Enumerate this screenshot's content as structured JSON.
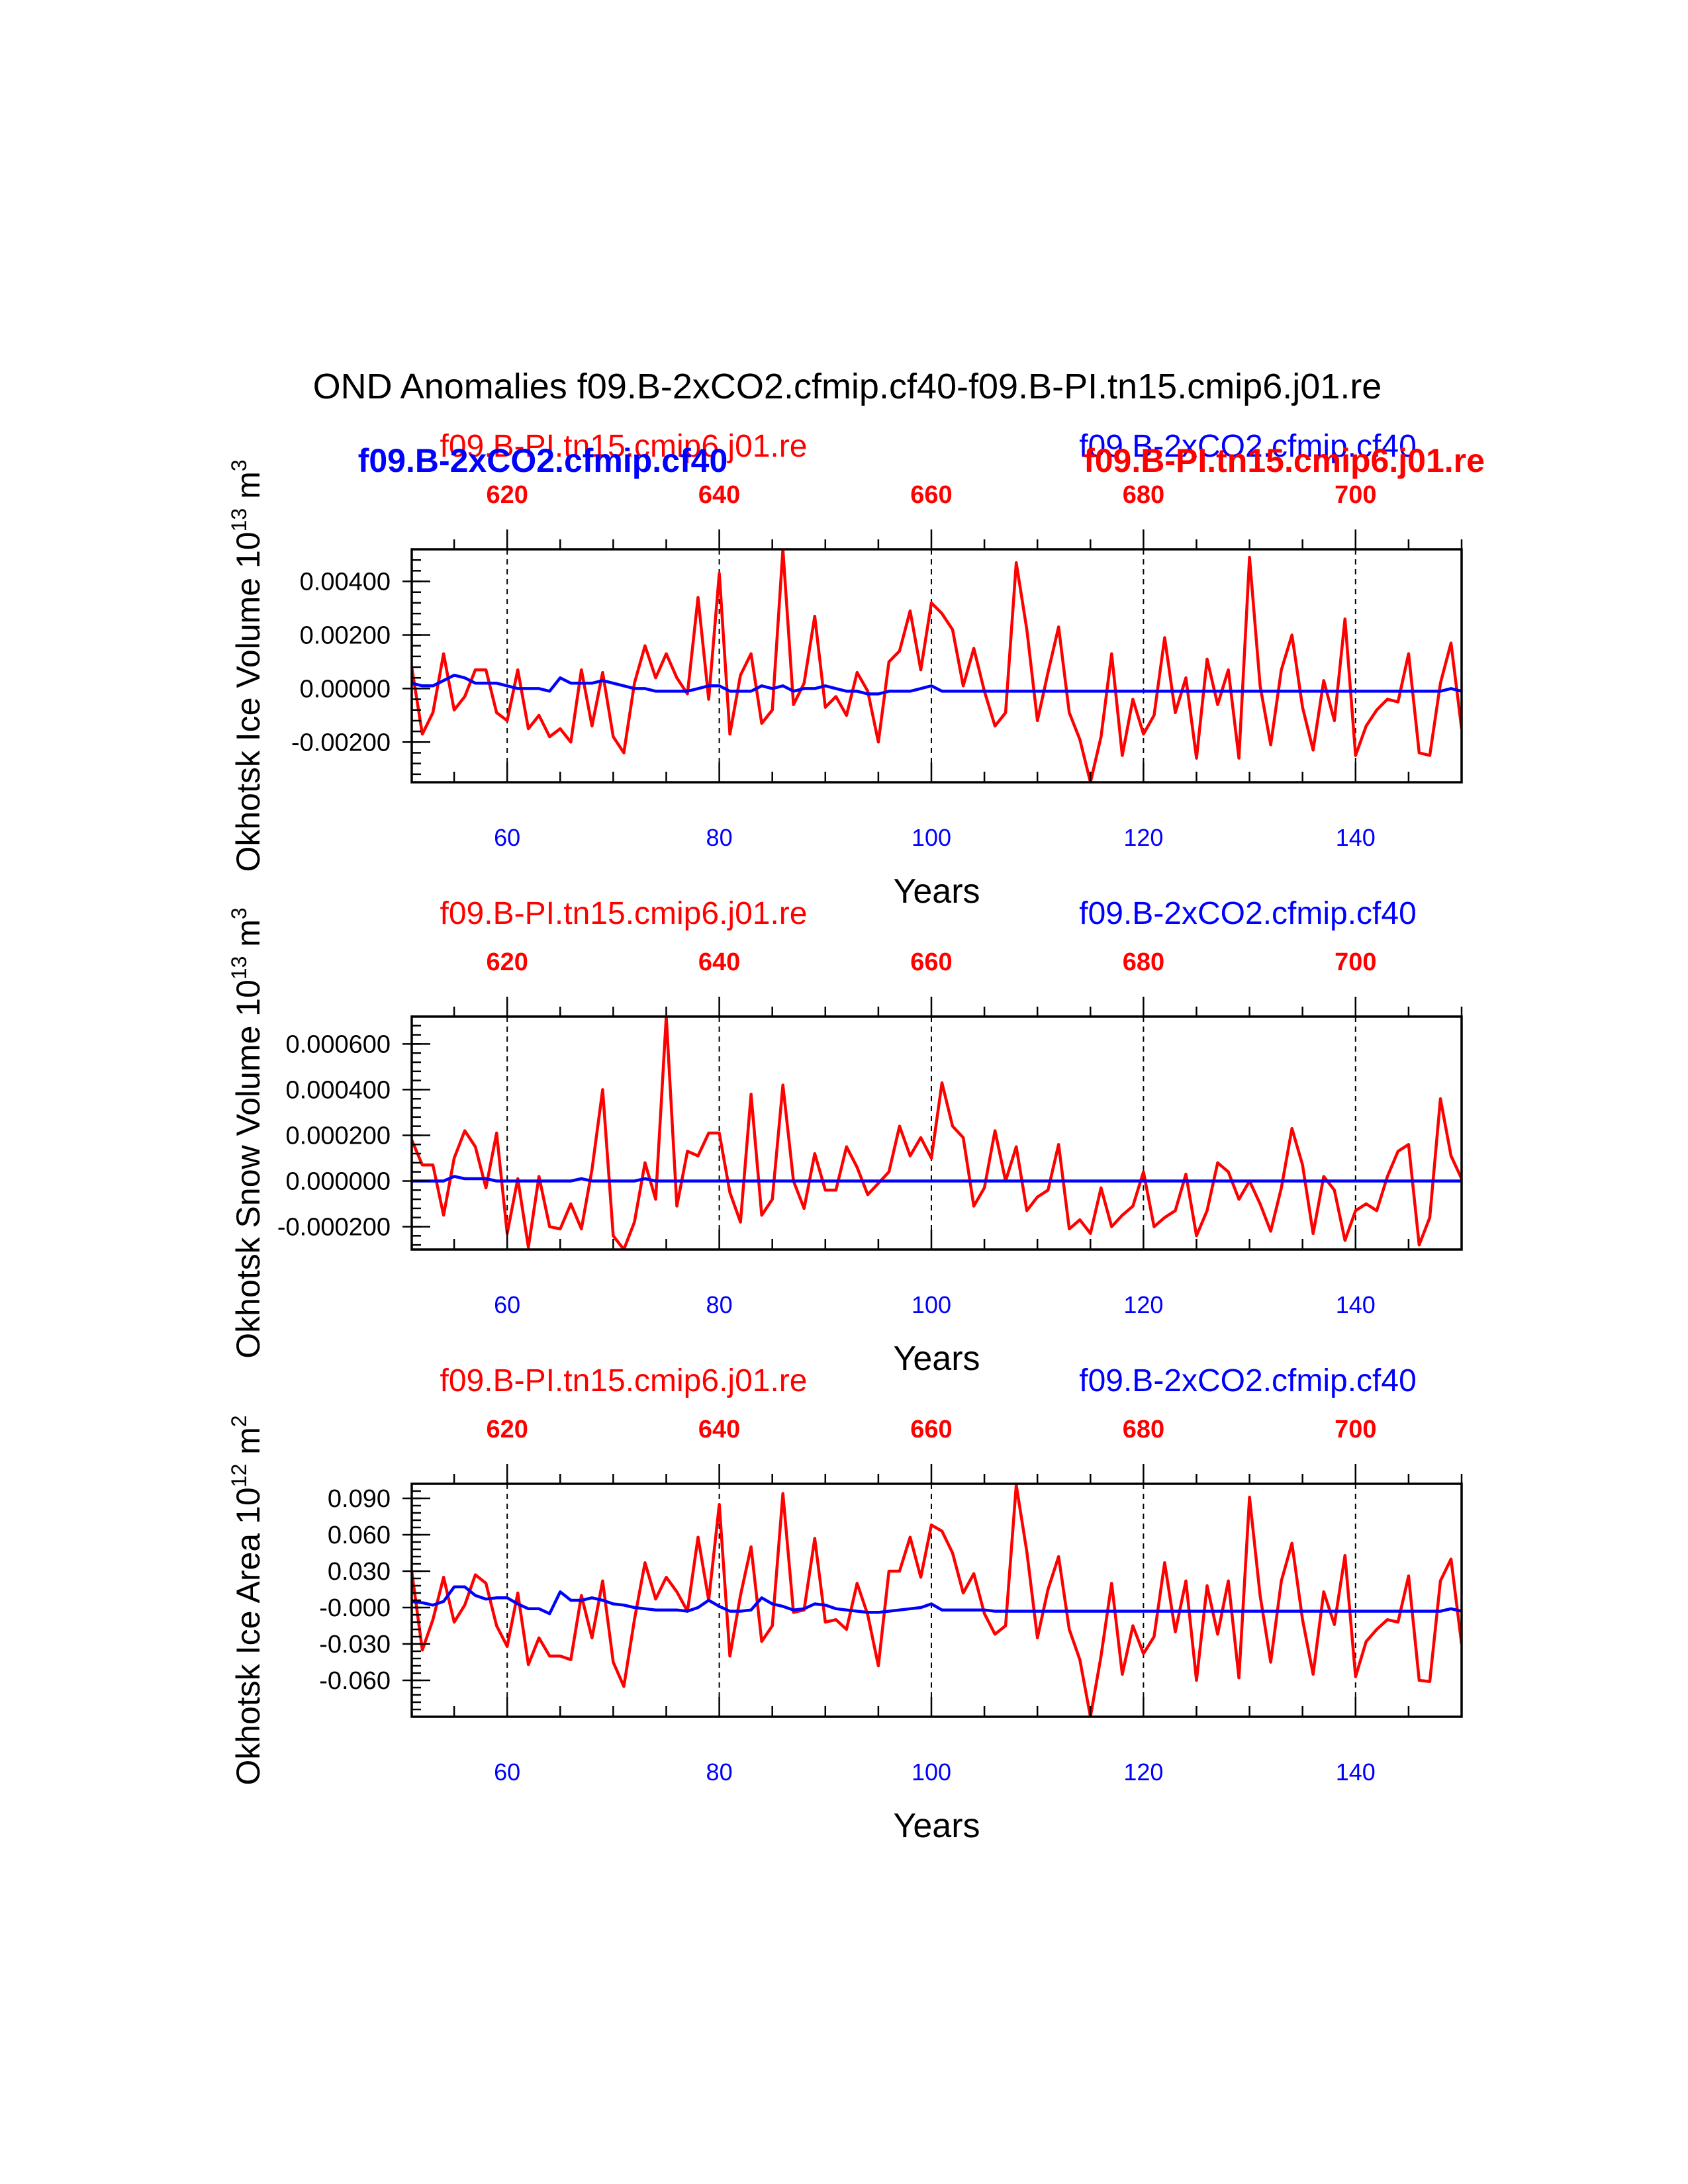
{
  "title": "OND Anomalies f09.B-2xCO2.cfmip.cf40-f09.B-PI.tn15.cmip6.j01.re",
  "colors": {
    "pi": "#ff0000",
    "co2": "#0000ff",
    "axis": "#000000"
  },
  "chart_data": [
    {
      "type": "line",
      "ylabel_main": "Okhotsk Ice Volume 10",
      "ylabel_exp": "13",
      "ylabel_unit": " m",
      "ylabel_unit_exp": "3",
      "xlabel": "Years",
      "bottom_ticks": [
        "60",
        "80",
        "100",
        "120",
        "140"
      ],
      "top_ticks": [
        "620",
        "640",
        "660",
        "680",
        "700"
      ],
      "ytick_labels": [
        "0.00400",
        "0.00200",
        "0.00000",
        "-0.00200"
      ],
      "yticks": [
        0.004,
        0.002,
        0.0,
        -0.002
      ],
      "ylim": [
        -0.0035,
        0.0052
      ],
      "xlim": [
        51,
        150
      ],
      "top_xlim": [
        611,
        710
      ],
      "left_label": "f09.B-PI.tn15.cmip6.j01.re",
      "right_label": "f09.B-2xCO2.cfmip.cf40",
      "left_bold": "f09.B-2xCO2.cfmip.cf40",
      "right_bold": "f09.B-PI.tn15.cmip6.j01.re",
      "series": [
        {
          "name": "f09.B-PI.tn15.cmip6.j01.re",
          "color": "red",
          "values": [
            0.0008,
            -0.0017,
            -0.0009,
            0.0013,
            -0.0008,
            -0.0003,
            0.0007,
            0.0007,
            -0.0009,
            -0.0012,
            0.0007,
            -0.0015,
            -0.001,
            -0.0018,
            -0.0015,
            -0.002,
            0.0007,
            -0.0014,
            0.0006,
            -0.0018,
            -0.0024,
            0.0002,
            0.0016,
            0.0004,
            0.0013,
            0.0004,
            -0.0002,
            0.0034,
            -0.0004,
            0.0043,
            -0.0017,
            0.0005,
            0.0013,
            -0.0013,
            -0.0008,
            0.0052,
            -0.0006,
            0.0002,
            0.0027,
            -0.0007,
            -0.0003,
            -0.001,
            0.0006,
            -0.0001,
            -0.002,
            0.001,
            0.0014,
            0.0029,
            0.0007,
            0.0032,
            0.0028,
            0.0022,
            0.0001,
            0.0015,
            -0.0001,
            -0.0014,
            -0.0009,
            0.0047,
            0.0022,
            -0.0012,
            0.0006,
            0.0023,
            -0.0009,
            -0.0019,
            -0.0035,
            -0.0018,
            0.0013,
            -0.0025,
            -0.0004,
            -0.0017,
            -0.001,
            0.0019,
            -0.0009,
            0.0004,
            -0.0026,
            0.0011,
            -0.0006,
            0.0007,
            -0.0026,
            0.0049,
            0.0001,
            -0.0021,
            0.0007,
            0.002,
            -0.0007,
            -0.0023,
            0.0003,
            -0.0012,
            0.0026,
            -0.0025,
            -0.0014,
            -0.0008,
            -0.0004,
            -0.0005,
            0.0013,
            -0.0024,
            -0.0025,
            0.0002,
            0.0017,
            -0.0015
          ]
        },
        {
          "name": "f09.B-2xCO2.cfmip.cf40",
          "color": "blue",
          "values": [
            0.0002,
            0.0001,
            0.0001,
            0.0003,
            0.0005,
            0.0004,
            0.0002,
            0.0002,
            0.0002,
            0.0001,
            0.0,
            0.0,
            0.0,
            -0.0001,
            0.0004,
            0.0002,
            0.0002,
            0.0002,
            0.0003,
            0.0002,
            0.0001,
            0.0,
            0.0,
            -0.0001,
            -0.0001,
            -0.0001,
            -0.0001,
            0.0,
            0.0001,
            0.0001,
            -0.0001,
            -0.0001,
            -0.0001,
            0.0001,
            0.0,
            0.0001,
            -0.0001,
            0.0,
            0.0,
            0.0001,
            0.0,
            -0.0001,
            -0.0001,
            -0.0002,
            -0.0002,
            -0.0001,
            -0.0001,
            -0.0001,
            0.0,
            0.0001,
            -0.0001,
            -0.0001,
            -0.0001,
            -0.0001,
            -0.0001,
            -0.0001,
            -0.0001,
            -0.0001,
            -0.0001,
            -0.0001,
            -0.0001,
            -0.0001,
            -0.0001,
            -0.0001,
            -0.0001,
            -0.0001,
            -0.0001,
            -0.0001,
            -0.0001,
            -0.0001,
            -0.0001,
            -0.0001,
            -0.0001,
            -0.0001,
            -0.0001,
            -0.0001,
            -0.0001,
            -0.0001,
            -0.0001,
            -0.0001,
            -0.0001,
            -0.0001,
            -0.0001,
            -0.0001,
            -0.0001,
            -0.0001,
            -0.0001,
            -0.0001,
            -0.0001,
            -0.0001,
            -0.0001,
            -0.0001,
            -0.0001,
            -0.0001,
            -0.0001,
            -0.0001,
            -0.0001,
            -0.0001,
            0.0,
            -0.0001
          ]
        }
      ]
    },
    {
      "type": "line",
      "ylabel_main": "Okhotsk Snow Volume 10",
      "ylabel_exp": "13",
      "ylabel_unit": " m",
      "ylabel_unit_exp": "3",
      "xlabel": "Years",
      "bottom_ticks": [
        "60",
        "80",
        "100",
        "120",
        "140"
      ],
      "top_ticks": [
        "620",
        "640",
        "660",
        "680",
        "700"
      ],
      "ytick_labels": [
        "0.000600",
        "0.000400",
        "0.000200",
        "0.000000",
        "-0.000200"
      ],
      "yticks": [
        0.0006,
        0.0004,
        0.0002,
        0.0,
        -0.0002
      ],
      "ylim": [
        -0.0003,
        0.00072
      ],
      "xlim": [
        51,
        150
      ],
      "top_xlim": [
        611,
        710
      ],
      "left_label": "f09.B-PI.tn15.cmip6.j01.re",
      "right_label": "f09.B-2xCO2.cfmip.cf40",
      "series": [
        {
          "name": "f09.B-PI.tn15.cmip6.j01.re",
          "color": "red",
          "values": [
            0.00018,
            7e-05,
            7e-05,
            -0.00015,
            0.0001,
            0.00022,
            0.00015,
            -3e-05,
            0.00021,
            -0.00023,
            1e-05,
            -0.00029,
            2e-05,
            -0.0002,
            -0.00021,
            -0.0001,
            -0.00021,
            5e-05,
            0.0004,
            -0.00024,
            -0.0003,
            -0.00018,
            8e-05,
            -8e-05,
            0.00072,
            -0.00011,
            0.00013,
            0.00011,
            0.00021,
            0.00021,
            -5e-05,
            -0.00018,
            0.00038,
            -0.00015,
            -8e-05,
            0.00042,
            0.0,
            -0.00012,
            0.00012,
            -4e-05,
            -4e-05,
            0.00015,
            6e-05,
            -6e-05,
            -1e-05,
            4e-05,
            0.00024,
            0.00011,
            0.00019,
            0.0001,
            0.00043,
            0.00024,
            0.00019,
            -0.00011,
            -3e-05,
            0.00022,
            0.0,
            0.00015,
            -0.00013,
            -7e-05,
            -4e-05,
            0.00016,
            -0.00021,
            -0.00017,
            -0.00023,
            -3e-05,
            -0.0002,
            -0.00015,
            -0.00011,
            4e-05,
            -0.0002,
            -0.00016,
            -0.00013,
            3e-05,
            -0.00024,
            -0.00013,
            8e-05,
            4e-05,
            -8e-05,
            0.0,
            -0.0001,
            -0.00022,
            -3e-05,
            0.00023,
            7e-05,
            -0.00023,
            2e-05,
            -4e-05,
            -0.00026,
            -0.00013,
            -0.0001,
            -0.00013,
            2e-05,
            0.00013,
            0.00016,
            -0.00028,
            -0.00016,
            0.00036,
            0.00011,
            1e-05
          ]
        },
        {
          "name": "f09.B-2xCO2.cfmip.cf40",
          "color": "blue",
          "values": [
            0.0,
            0.0,
            0.0,
            0.0,
            2e-05,
            1e-05,
            1e-05,
            1e-05,
            0.0,
            0.0,
            0.0,
            0.0,
            0.0,
            0.0,
            0.0,
            0.0,
            1e-05,
            0.0,
            0.0,
            0.0,
            0.0,
            0.0,
            1e-05,
            0.0,
            0.0,
            0.0,
            0.0,
            0.0,
            0.0,
            0.0,
            0.0,
            0.0,
            0.0,
            0.0,
            0.0,
            0.0,
            0.0,
            0.0,
            0.0,
            0.0,
            0.0,
            0.0,
            0.0,
            0.0,
            0.0,
            0.0,
            0.0,
            0.0,
            0.0,
            0.0,
            0.0,
            0.0,
            0.0,
            0.0,
            0.0,
            0.0,
            0.0,
            0.0,
            0.0,
            0.0,
            0.0,
            0.0,
            0.0,
            0.0,
            0.0,
            0.0,
            0.0,
            0.0,
            0.0,
            0.0,
            0.0,
            0.0,
            0.0,
            0.0,
            0.0,
            0.0,
            0.0,
            0.0,
            0.0,
            0.0,
            0.0,
            0.0,
            0.0,
            0.0,
            0.0,
            0.0,
            0.0,
            0.0,
            0.0,
            0.0,
            0.0,
            0.0,
            0.0,
            0.0,
            0.0,
            0.0,
            0.0,
            0.0,
            0.0,
            0.0
          ]
        }
      ]
    },
    {
      "type": "line",
      "ylabel_main": "Okhotsk Ice Area 10",
      "ylabel_exp": "12",
      "ylabel_unit": " m",
      "ylabel_unit_exp": "2",
      "xlabel": "Years",
      "bottom_ticks": [
        "60",
        "80",
        "100",
        "120",
        "140"
      ],
      "top_ticks": [
        "620",
        "640",
        "660",
        "680",
        "700"
      ],
      "ytick_labels": [
        "0.090",
        "0.060",
        "0.030",
        "-0.000",
        "-0.030",
        "-0.060"
      ],
      "yticks": [
        0.09,
        0.06,
        0.03,
        0.0,
        -0.03,
        -0.06
      ],
      "ylim": [
        -0.09,
        0.102
      ],
      "xlim": [
        51,
        150
      ],
      "top_xlim": [
        611,
        710
      ],
      "left_label": "f09.B-PI.tn15.cmip6.j01.re",
      "right_label": "f09.B-2xCO2.cfmip.cf40",
      "series": [
        {
          "name": "f09.B-PI.tn15.cmip6.j01.re",
          "color": "red",
          "values": [
            0.03,
            -0.035,
            -0.01,
            0.025,
            -0.012,
            0.002,
            0.027,
            0.02,
            -0.015,
            -0.032,
            0.012,
            -0.047,
            -0.025,
            -0.04,
            -0.04,
            -0.043,
            0.01,
            -0.025,
            0.022,
            -0.045,
            -0.065,
            -0.01,
            0.037,
            0.007,
            0.025,
            0.013,
            -0.003,
            0.058,
            0.006,
            0.085,
            -0.04,
            0.01,
            0.05,
            -0.028,
            -0.015,
            0.094,
            -0.004,
            -0.002,
            0.057,
            -0.012,
            -0.01,
            -0.018,
            0.02,
            -0.006,
            -0.048,
            0.03,
            0.03,
            0.058,
            0.025,
            0.068,
            0.063,
            0.045,
            0.012,
            0.028,
            -0.005,
            -0.022,
            -0.015,
            0.101,
            0.046,
            -0.025,
            0.015,
            0.042,
            -0.018,
            -0.043,
            -0.09,
            -0.04,
            0.02,
            -0.055,
            -0.015,
            -0.038,
            -0.024,
            0.037,
            -0.02,
            0.022,
            -0.06,
            0.018,
            -0.022,
            0.022,
            -0.058,
            0.091,
            0.01,
            -0.045,
            0.022,
            0.053,
            -0.01,
            -0.055,
            0.013,
            -0.014,
            0.043,
            -0.057,
            -0.028,
            -0.018,
            -0.01,
            -0.012,
            0.026,
            -0.06,
            -0.061,
            0.022,
            0.04,
            -0.03
          ]
        },
        {
          "name": "f09.B-2xCO2.cfmip.cf40",
          "color": "blue",
          "values": [
            0.005,
            0.004,
            0.002,
            0.005,
            0.017,
            0.017,
            0.01,
            0.007,
            0.008,
            0.008,
            0.003,
            -0.001,
            -0.001,
            -0.005,
            0.013,
            0.006,
            0.006,
            0.008,
            0.006,
            0.003,
            0.002,
            0.0,
            -0.001,
            -0.002,
            -0.002,
            -0.002,
            -0.003,
            0.0,
            0.006,
            0.001,
            -0.003,
            -0.003,
            -0.002,
            0.008,
            0.003,
            0.001,
            -0.002,
            -0.001,
            0.003,
            0.002,
            -0.001,
            -0.002,
            -0.003,
            -0.004,
            -0.004,
            -0.003,
            -0.002,
            -0.001,
            0.0,
            0.003,
            -0.002,
            -0.002,
            -0.002,
            -0.002,
            -0.002,
            -0.003,
            -0.003,
            -0.003,
            -0.003,
            -0.003,
            -0.003,
            -0.003,
            -0.003,
            -0.003,
            -0.003,
            -0.003,
            -0.003,
            -0.003,
            -0.003,
            -0.003,
            -0.003,
            -0.003,
            -0.003,
            -0.003,
            -0.003,
            -0.003,
            -0.003,
            -0.003,
            -0.003,
            -0.003,
            -0.003,
            -0.003,
            -0.003,
            -0.003,
            -0.003,
            -0.003,
            -0.003,
            -0.003,
            -0.003,
            -0.003,
            -0.003,
            -0.003,
            -0.003,
            -0.003,
            -0.003,
            -0.003,
            -0.003,
            -0.003,
            -0.001,
            -0.003
          ]
        }
      ]
    }
  ]
}
